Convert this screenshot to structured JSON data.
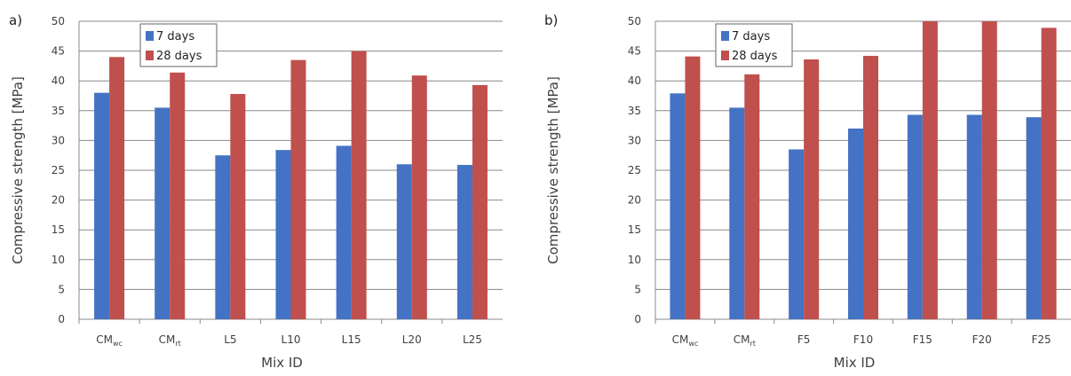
{
  "chart_data": [
    {
      "type": "bar",
      "panel_label": "a)",
      "categories": [
        {
          "base": "CM",
          "sub": "wc"
        },
        {
          "base": "CM",
          "sub": "rt"
        },
        {
          "base": "L5",
          "sub": ""
        },
        {
          "base": "L10",
          "sub": ""
        },
        {
          "base": "L15",
          "sub": ""
        },
        {
          "base": "L20",
          "sub": ""
        },
        {
          "base": "L25",
          "sub": ""
        }
      ],
      "series": [
        {
          "name": "7 days",
          "color": "#4472c4",
          "values": [
            38.0,
            35.5,
            27.5,
            28.4,
            29.1,
            26.0,
            25.9
          ]
        },
        {
          "name": "28 days",
          "color": "#c0504d",
          "values": [
            44.0,
            41.4,
            37.8,
            43.5,
            45.0,
            40.9,
            39.3
          ]
        }
      ],
      "xlabel": "Mix ID",
      "ylabel": "Compressive strength [MPa]",
      "ylim": [
        0,
        50
      ],
      "yticks": [
        "0",
        "5",
        "10",
        "15",
        "20",
        "25",
        "30",
        "35",
        "40",
        "45",
        "50"
      ],
      "grid": true,
      "legend_position": "top-left"
    },
    {
      "type": "bar",
      "panel_label": "b)",
      "categories": [
        {
          "base": "CM",
          "sub": "wc"
        },
        {
          "base": "CM",
          "sub": "rt"
        },
        {
          "base": "F5",
          "sub": ""
        },
        {
          "base": "F10",
          "sub": ""
        },
        {
          "base": "F15",
          "sub": ""
        },
        {
          "base": "F20",
          "sub": ""
        },
        {
          "base": "F25",
          "sub": ""
        }
      ],
      "series": [
        {
          "name": "7 days",
          "color": "#4472c4",
          "values": [
            37.9,
            35.5,
            28.5,
            32.0,
            34.3,
            34.3,
            33.9
          ]
        },
        {
          "name": "28 days",
          "color": "#c0504d",
          "values": [
            44.1,
            41.1,
            43.6,
            44.2,
            50.0,
            50.0,
            48.9
          ]
        }
      ],
      "xlabel": "Mix ID",
      "ylabel": "Compressive strength [MPa]",
      "ylim": [
        0,
        50
      ],
      "yticks": [
        "0",
        "5",
        "10",
        "15",
        "20",
        "25",
        "30",
        "35",
        "40",
        "45",
        "50"
      ],
      "grid": true,
      "legend_position": "top-left"
    }
  ]
}
